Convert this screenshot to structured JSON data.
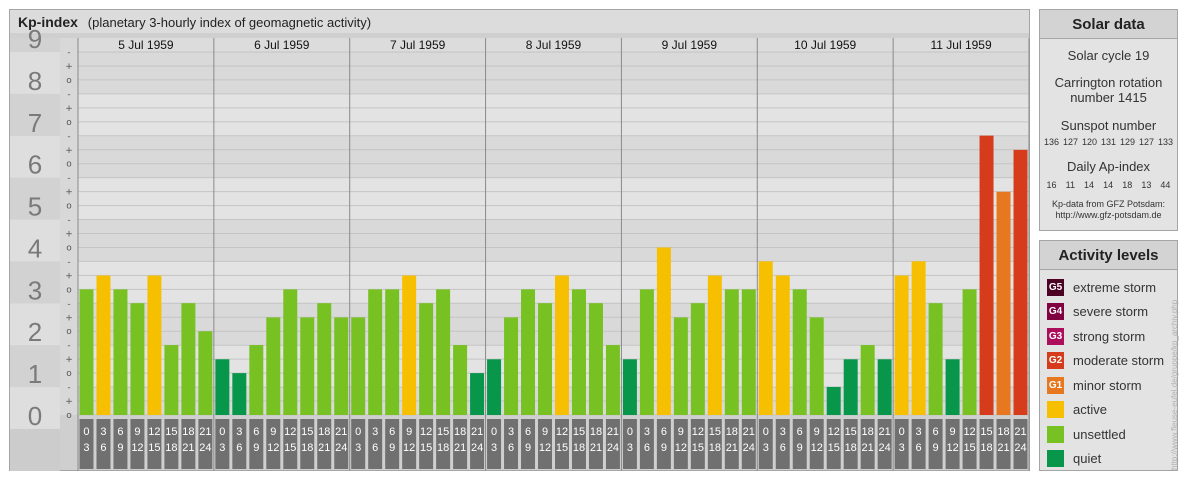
{
  "header": {
    "title": "Kp-index",
    "subtitle": "(planetary 3-hourly index of geomagnetic activity)"
  },
  "chart_data": {
    "type": "bar",
    "title": "Kp-index",
    "subtitle": "(planetary 3-hourly index of geomagnetic activity)",
    "ylim": [
      0,
      9
    ],
    "y_ticks": [
      "0",
      "1",
      "2",
      "3",
      "4",
      "5",
      "6",
      "7",
      "8",
      "9"
    ],
    "minor_ticks": [
      "o",
      "+",
      "-"
    ],
    "days": [
      "5 Jul 1959",
      "6 Jul 1959",
      "7 Jul 1959",
      "8 Jul 1959",
      "9 Jul 1959",
      "10 Jul 1959",
      "11 Jul 1959"
    ],
    "interval_start": [
      "0",
      "3",
      "6",
      "9",
      "12",
      "15",
      "18",
      "21"
    ],
    "interval_end": [
      "3",
      "6",
      "9",
      "12",
      "15",
      "18",
      "21",
      "24"
    ],
    "values": [
      [
        3.0,
        3.33,
        3.0,
        2.67,
        3.33,
        1.67,
        2.67,
        2.0
      ],
      [
        1.33,
        1.0,
        1.67,
        2.33,
        3.0,
        2.33,
        2.67,
        2.33
      ],
      [
        2.33,
        3.0,
        3.0,
        3.33,
        2.67,
        3.0,
        1.67,
        1.0
      ],
      [
        1.33,
        2.33,
        3.0,
        2.67,
        3.33,
        3.0,
        2.67,
        1.67
      ],
      [
        1.33,
        3.0,
        4.0,
        2.33,
        2.67,
        3.33,
        3.0,
        3.0
      ],
      [
        3.67,
        3.33,
        3.0,
        2.33,
        0.67,
        1.33,
        1.67,
        1.33
      ],
      [
        3.33,
        3.67,
        2.67,
        1.33,
        3.0,
        6.67,
        5.33,
        6.33
      ]
    ],
    "level_colors": {
      "quiet": "#07964a",
      "unsettled": "#77c123",
      "active": "#f6c000",
      "G1": "#e8781f",
      "G2": "#d63c1c",
      "G3": "#ad0e5c",
      "G4": "#800040",
      "G5": "#4c0024"
    }
  },
  "solar": {
    "header": "Solar data",
    "cycle": "Solar cycle 19",
    "carrington_line1": "Carrington rotation",
    "carrington_line2": "number 1415",
    "sunspot_label": "Sunspot number",
    "sunspot_values": [
      "136",
      "127",
      "120",
      "131",
      "129",
      "127",
      "133"
    ],
    "ap_label": "Daily Ap-index",
    "ap_values": [
      "16",
      "11",
      "14",
      "14",
      "18",
      "13",
      "44"
    ],
    "source_line1": "Kp-data from GFZ Potsdam:",
    "source_line2": "http://www.gfz-potsdam.de"
  },
  "legend": {
    "header": "Activity levels",
    "items": [
      {
        "code": "G5",
        "label": "extreme storm",
        "color": "#4c0024"
      },
      {
        "code": "G4",
        "label": "severe storm",
        "color": "#800040"
      },
      {
        "code": "G3",
        "label": "strong storm",
        "color": "#ad0e5c"
      },
      {
        "code": "G2",
        "label": "moderate storm",
        "color": "#d63c1c"
      },
      {
        "code": "G1",
        "label": "minor storm",
        "color": "#e8781f"
      },
      {
        "code": "",
        "label": "active",
        "color": "#f6c000"
      },
      {
        "code": "",
        "label": "unsettled",
        "color": "#77c123"
      },
      {
        "code": "",
        "label": "quiet",
        "color": "#07964a"
      }
    ]
  },
  "watermark": "http://www.fleuse-eufel.de/gruppe/kp_archiv.php"
}
